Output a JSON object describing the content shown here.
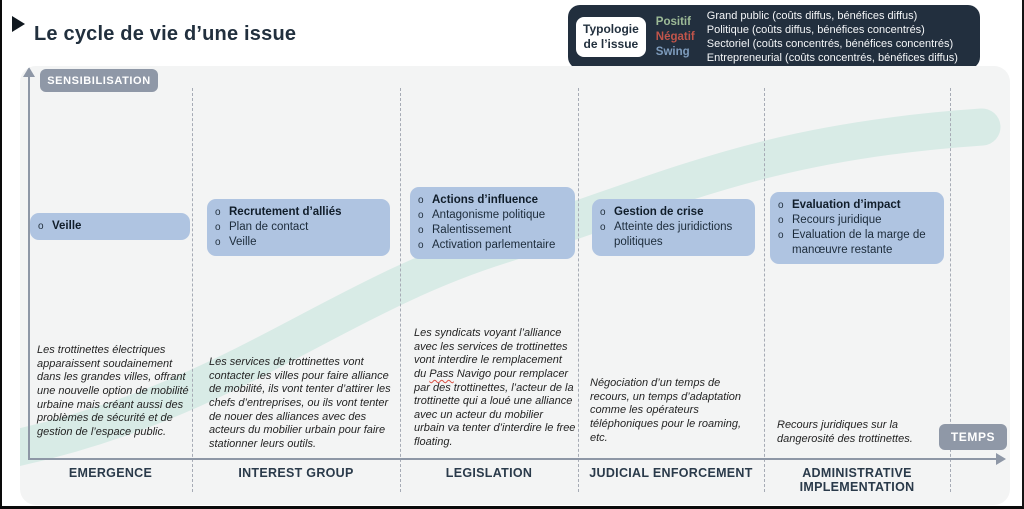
{
  "title": "Le cycle de vie d’une issue",
  "legend": {
    "label_line1": "Typologie",
    "label_line2": "de l’issue",
    "types": [
      {
        "label": "Positif",
        "color": "#9dbb97"
      },
      {
        "label": "Négatif",
        "color": "#c1554b"
      },
      {
        "label": "Swing",
        "color": "#7e9cbd"
      }
    ],
    "descriptions": [
      "Grand public (coûts diffus, bénéfices diffus)",
      "Politique (coûts diffus, bénéfices concentrés)",
      "Sectoriel (coûts concentrés, bénéfices concentrés)",
      "Entrepreneurial (coûts concentrés, bénéfices diffus)"
    ]
  },
  "axes": {
    "y_label": "SENSIBILISATION",
    "x_label": "TEMPS"
  },
  "columns": [
    {
      "stage": "EMERGENCE",
      "box_items": [
        "Veille"
      ],
      "paragraph": "Les trottinettes électriques apparaissent soudainement dans les grandes villes, offrant une nouvelle option de mobilité urbaine mais créant aussi des problèmes de sécurité et de gestion de l’espace public."
    },
    {
      "stage": "INTEREST GROUP",
      "box_items": [
        "Recrutement d’alliés",
        "Plan de contact",
        "Veille"
      ],
      "paragraph": "Les services de trottinettes vont contacter les villes pour faire alliance de mobilité, ils vont tenter d’attirer les chefs d’entreprises, ou ils vont tenter de nouer des alliances avec des acteurs du mobilier urbain pour faire stationner leurs outils."
    },
    {
      "stage": "LEGISLATION",
      "box_items": [
        "Actions d’influence",
        "Antagonisme politique",
        "Ralentissement",
        "Activation parlementaire"
      ],
      "paragraph": "Les syndicats voyant l’alliance avec les services de trottinettes vont interdire le remplacement du Pass Navigo pour remplacer par des trottinettes, l’acteur de la trottinette qui a loué une alliance avec un acteur du mobilier urbain va tenter d’interdire le free floating.",
      "misspelled": "Pass"
    },
    {
      "stage": "JUDICIAL ENFORCEMENT",
      "box_items": [
        "Gestion de crise",
        "Atteinte des juridictions politiques"
      ],
      "paragraph": "Négociation d’un temps de recours, un temps d’adaptation comme les opérateurs téléphoniques pour le roaming, etc."
    },
    {
      "stage": "ADMINISTRATIVE IMPLEMENTATION",
      "box_items": [
        "Evaluation d’impact",
        "Recours juridique",
        "Evaluation de la marge de manœuvre restante"
      ],
      "paragraph": "Recours juridiques sur la dangerosité des trottinettes."
    }
  ],
  "colors": {
    "box_blue": "#afc4e1",
    "badge_gray": "#8f98a7",
    "legend_bg": "#222f3e",
    "panel_bg": "#f3f4f4",
    "curve_mint": "#d8ebe6",
    "title_navy": "#22303e"
  }
}
